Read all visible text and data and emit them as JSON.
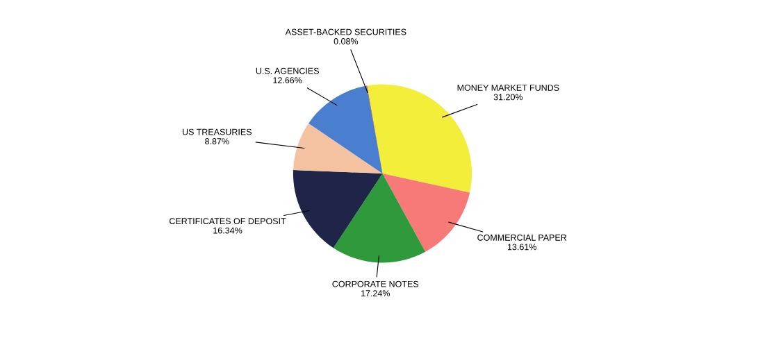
{
  "chart_data": {
    "type": "pie",
    "categories": [
      "MONEY MARKET FUNDS",
      "COMMERCIAL PAPER",
      "CORPORATE NOTES",
      "CERTIFICATES OF DEPOSIT",
      "US TREASURIES",
      "U.S. AGENCIES",
      "ASSET-BACKED SECURITIES"
    ],
    "values": [
      31.2,
      13.61,
      17.24,
      16.34,
      8.87,
      12.66,
      0.08
    ],
    "value_labels": [
      "31.20%",
      "13.61%",
      "17.24%",
      "16.34%",
      "8.87%",
      "12.66%",
      "0.08%"
    ],
    "colors": [
      "#f2ee3a",
      "#f77a78",
      "#2f9a3c",
      "#1f2548",
      "#f4c2a0",
      "#4a7fd0",
      "#8a3a3a"
    ]
  }
}
